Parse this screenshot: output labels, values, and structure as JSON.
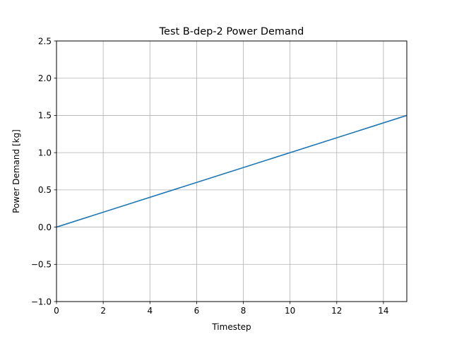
{
  "chart_data": {
    "type": "line",
    "title": "Test B-dep-2 Power Demand",
    "xlabel": "Timestep",
    "ylabel": "Power Demand [kg]",
    "xlim": [
      0,
      15
    ],
    "ylim": [
      -1.0,
      2.5
    ],
    "xticks": [
      0,
      2,
      4,
      6,
      8,
      10,
      12,
      14
    ],
    "xtick_labels": [
      "0",
      "2",
      "4",
      "6",
      "8",
      "10",
      "12",
      "14"
    ],
    "yticks": [
      -1.0,
      -0.5,
      0.0,
      0.5,
      1.0,
      1.5,
      2.0,
      2.5
    ],
    "ytick_labels": [
      "−1.0",
      "−0.5",
      "0.0",
      "0.5",
      "1.0",
      "1.5",
      "2.0",
      "2.5"
    ],
    "grid": true,
    "series": [
      {
        "color": "#1f77b4",
        "x": [
          0,
          15
        ],
        "y": [
          0.0,
          1.5
        ]
      }
    ]
  }
}
